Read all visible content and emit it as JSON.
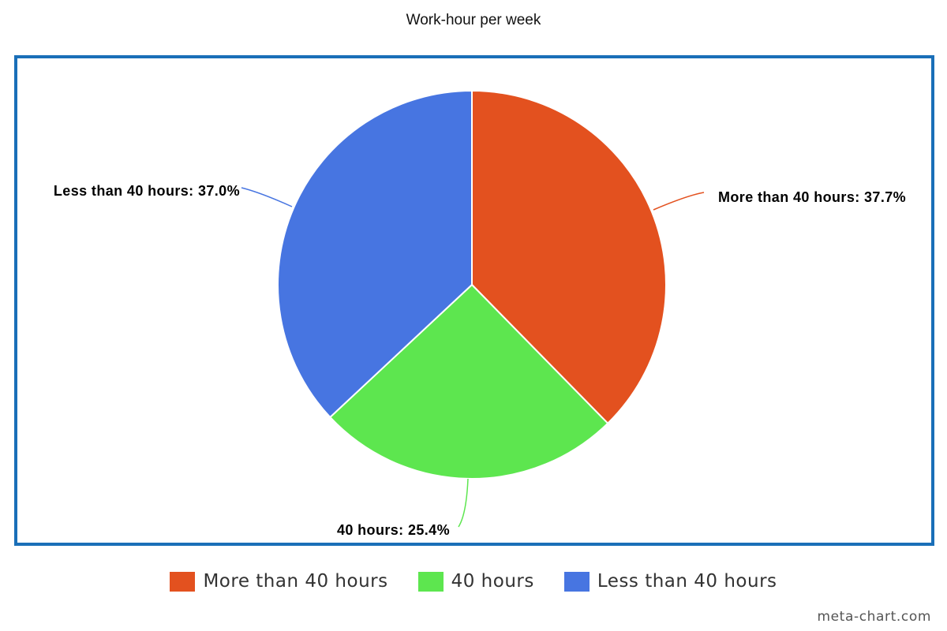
{
  "chart_data": {
    "type": "pie",
    "title": "Work-hour per week",
    "slices": [
      {
        "label": "More than 40 hours",
        "value": 37.7,
        "display": "More than 40 hours: 37.7%",
        "color": "#e3511f"
      },
      {
        "label": "40 hours",
        "value": 25.4,
        "display": "40 hours: 25.4%",
        "color": "#5de64f"
      },
      {
        "label": "Less than 40 hours",
        "value": 37.0,
        "display": "Less than 40 hours: 37.0%",
        "color": "#4775e1"
      }
    ],
    "legend_position": "bottom",
    "frame_color": "#1a6fb8"
  },
  "watermark": "meta-chart.com"
}
